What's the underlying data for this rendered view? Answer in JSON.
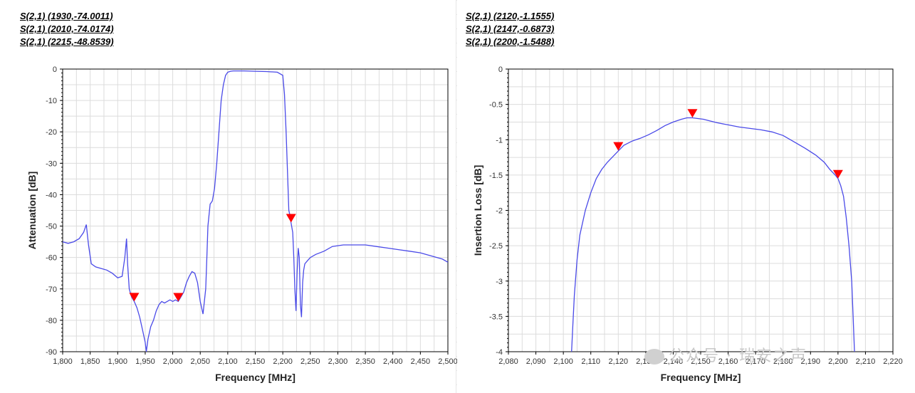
{
  "left_markers": [
    "S(2,1) (1930,-74.0011)",
    "S(2,1) (2010,-74.0174)",
    "S(2,1) (2215,-48.8539)"
  ],
  "right_markers": [
    "S(2,1) (2120,-1.1555)",
    "S(2,1) (2147,-0.6873)",
    "S(2,1) (2200,-1.5488)"
  ],
  "watermark": "公众号 · 瑞安之声",
  "colors": {
    "trace": "#4a4ae8",
    "marker": "#ff0000"
  },
  "chart_data": [
    {
      "type": "line",
      "xlabel": "Frequency [MHz]",
      "ylabel": "Attenuation [dB]",
      "xlim": [
        1800,
        2500
      ],
      "ylim": [
        -90,
        0
      ],
      "xticks": [
        1800,
        1850,
        1900,
        1950,
        2000,
        2050,
        2100,
        2150,
        2200,
        2250,
        2300,
        2350,
        2400,
        2450,
        2500
      ],
      "xtick_labels": [
        "1,800",
        "1,850",
        "1,900",
        "1,950",
        "2,000",
        "2,050",
        "2,100",
        "2,150",
        "2,200",
        "2,250",
        "2,300",
        "2,350",
        "2,400",
        "2,450",
        "2,500"
      ],
      "yticks": [
        0,
        -10,
        -20,
        -30,
        -40,
        -50,
        -60,
        -70,
        -80,
        -90
      ],
      "ytick_labels": [
        "0",
        "-10",
        "-20",
        "-30",
        "-40",
        "-50",
        "-60",
        "-70",
        "-80",
        "-90"
      ],
      "grid": true,
      "series": [
        {
          "x": [
            1800,
            1810,
            1820,
            1830,
            1838,
            1843,
            1847,
            1852,
            1860,
            1870,
            1880,
            1890,
            1900,
            1908,
            1913,
            1916,
            1918,
            1921,
            1925,
            1930,
            1935,
            1940,
            1945,
            1950,
            1952,
            1955,
            1960,
            1965,
            1970,
            1975,
            1980,
            1985,
            1990,
            1995,
            2000,
            2005,
            2010,
            2015,
            2020,
            2025,
            2030,
            2035,
            2040,
            2045,
            2050,
            2055,
            2060,
            2062,
            2064,
            2068,
            2072,
            2076,
            2080,
            2084,
            2088,
            2092,
            2096,
            2100,
            2105,
            2110,
            2120,
            2130,
            2150,
            2170,
            2190,
            2200,
            2203,
            2206,
            2209,
            2211,
            2213,
            2215,
            2218,
            2220,
            2222,
            2224,
            2226,
            2228,
            2230,
            2232,
            2234,
            2236,
            2238,
            2240,
            2245,
            2250,
            2260,
            2275,
            2290,
            2310,
            2330,
            2350,
            2370,
            2390,
            2410,
            2430,
            2450,
            2470,
            2490,
            2500
          ],
          "y": [
            -55,
            -55.5,
            -55,
            -54,
            -52,
            -49.5,
            -56,
            -62,
            -63,
            -63.5,
            -64,
            -65,
            -66.5,
            -66,
            -60,
            -54,
            -62,
            -70,
            -72.5,
            -74,
            -76,
            -79,
            -83,
            -87,
            -90,
            -86,
            -82,
            -80,
            -77,
            -75,
            -74,
            -74.5,
            -74,
            -73.5,
            -74,
            -73.5,
            -74,
            -72.5,
            -71,
            -68,
            -66,
            -64.5,
            -65,
            -68,
            -74,
            -78,
            -70,
            -60,
            -50,
            -43,
            -42,
            -38,
            -30,
            -20,
            -10,
            -5,
            -2,
            -1,
            -0.7,
            -0.6,
            -0.6,
            -0.6,
            -0.7,
            -0.8,
            -1,
            -2,
            -8,
            -20,
            -35,
            -45,
            -46.5,
            -48.9,
            -52,
            -60,
            -70,
            -77,
            -65,
            -57,
            -60,
            -75,
            -79,
            -68,
            -64,
            -62,
            -61,
            -60,
            -59,
            -58,
            -56.5,
            -56,
            -56,
            -56,
            -56.5,
            -57,
            -57.5,
            -58,
            -58.5,
            -59.5,
            -60.5,
            -61.5
          ]
        }
      ],
      "markers": [
        {
          "x": 1930,
          "y": -74.0011
        },
        {
          "x": 2010,
          "y": -74.0174
        },
        {
          "x": 2215,
          "y": -48.8539
        }
      ]
    },
    {
      "type": "line",
      "xlabel": "Frequency [MHz]",
      "ylabel": "Insertion Loss [dB]",
      "xlim": [
        2080,
        2220
      ],
      "ylim": [
        -4,
        0
      ],
      "xticks": [
        2080,
        2090,
        2100,
        2110,
        2120,
        2130,
        2140,
        2150,
        2160,
        2170,
        2180,
        2190,
        2200,
        2210,
        2220
      ],
      "xtick_labels": [
        "2,080",
        "2,090",
        "2,100",
        "2,110",
        "2,120",
        "2,130",
        "2,140",
        "2,150",
        "2,160",
        "2,170",
        "2,180",
        "2,190",
        "2,200",
        "2,210",
        "2,220"
      ],
      "yticks": [
        0,
        -0.5,
        -1,
        -1.5,
        -2,
        -2.5,
        -3,
        -3.5,
        -4
      ],
      "ytick_labels": [
        "0",
        "-0.5",
        "-1",
        "-1.5",
        "-2",
        "-2.5",
        "-3",
        "-3.5",
        "-4"
      ],
      "grid": true,
      "series": [
        {
          "x": [
            2103,
            2103.5,
            2104,
            2105,
            2106,
            2108,
            2110,
            2112,
            2114,
            2116,
            2118,
            2120,
            2122,
            2125,
            2128,
            2131,
            2134,
            2137,
            2140,
            2143,
            2145,
            2147,
            2149,
            2151,
            2153,
            2156,
            2160,
            2164,
            2168,
            2172,
            2176,
            2180,
            2184,
            2188,
            2192,
            2195,
            2197,
            2199,
            2200,
            2201,
            2202,
            2203,
            2204,
            2205,
            2205.5,
            2206
          ],
          "y": [
            -4,
            -3.6,
            -3.2,
            -2.7,
            -2.35,
            -2.0,
            -1.75,
            -1.55,
            -1.42,
            -1.32,
            -1.24,
            -1.16,
            -1.08,
            -1.02,
            -0.98,
            -0.93,
            -0.87,
            -0.8,
            -0.75,
            -0.71,
            -0.69,
            -0.69,
            -0.7,
            -0.71,
            -0.73,
            -0.76,
            -0.79,
            -0.82,
            -0.84,
            -0.86,
            -0.89,
            -0.94,
            -1.03,
            -1.12,
            -1.22,
            -1.32,
            -1.42,
            -1.5,
            -1.55,
            -1.65,
            -1.8,
            -2.1,
            -2.5,
            -3.0,
            -3.5,
            -4
          ]
        }
      ],
      "markers": [
        {
          "x": 2120,
          "y": -1.1555
        },
        {
          "x": 2147,
          "y": -0.6873
        },
        {
          "x": 2200,
          "y": -1.5488
        }
      ]
    }
  ]
}
